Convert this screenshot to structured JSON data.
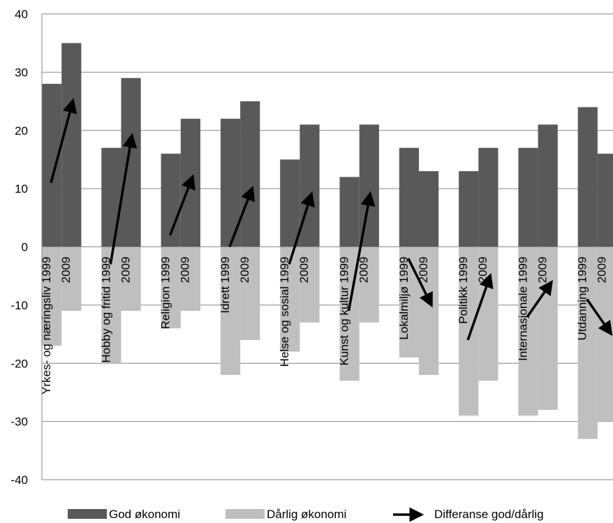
{
  "chart_data": {
    "type": "bar",
    "title": "",
    "xlabel": "",
    "ylabel": "",
    "ylim": [
      -40,
      40
    ],
    "yticks": [
      40,
      30,
      20,
      10,
      0,
      -10,
      -20,
      -30,
      -40
    ],
    "grid": true,
    "legend_position": "bottom",
    "colors": {
      "good": "#595959",
      "bad": "#bfbfbf",
      "arrow": "#000000",
      "grid": "#868686"
    },
    "categories": [
      "Yrkes- og næringsliv",
      "Hobby og fritid",
      "Religion",
      "Idrett",
      "Helse og sosial",
      "Kunst og kultur",
      "Lokalmiljø",
      "Politikk",
      "Internasjonale",
      "Utdanning"
    ],
    "years": [
      "1999",
      "2009"
    ],
    "series": [
      {
        "name": "God økonomi",
        "values": [
          [
            28,
            35
          ],
          [
            17,
            29
          ],
          [
            16,
            22
          ],
          [
            22,
            25
          ],
          [
            15,
            21
          ],
          [
            12,
            21
          ],
          [
            17,
            13
          ],
          [
            13,
            17
          ],
          [
            17,
            21
          ],
          [
            24,
            16
          ]
        ]
      },
      {
        "name": "Dårlig økonomi",
        "values": [
          [
            -17,
            -11
          ],
          [
            -20,
            -11
          ],
          [
            -14,
            -11
          ],
          [
            -22,
            -16
          ],
          [
            -18,
            -13
          ],
          [
            -23,
            -13
          ],
          [
            -19,
            -22
          ],
          [
            -29,
            -23
          ],
          [
            -29,
            -28
          ],
          [
            -33,
            -30
          ]
        ]
      },
      {
        "name": "Differanse god/dårlig",
        "values": [
          [
            11,
            24
          ],
          [
            -3,
            18
          ],
          [
            2,
            11
          ],
          [
            0,
            9
          ],
          [
            -3,
            8
          ],
          [
            -11,
            8
          ],
          [
            -2,
            -9
          ],
          [
            -16,
            -6
          ],
          [
            -12,
            -7
          ],
          [
            -9,
            -14
          ]
        ]
      }
    ]
  }
}
